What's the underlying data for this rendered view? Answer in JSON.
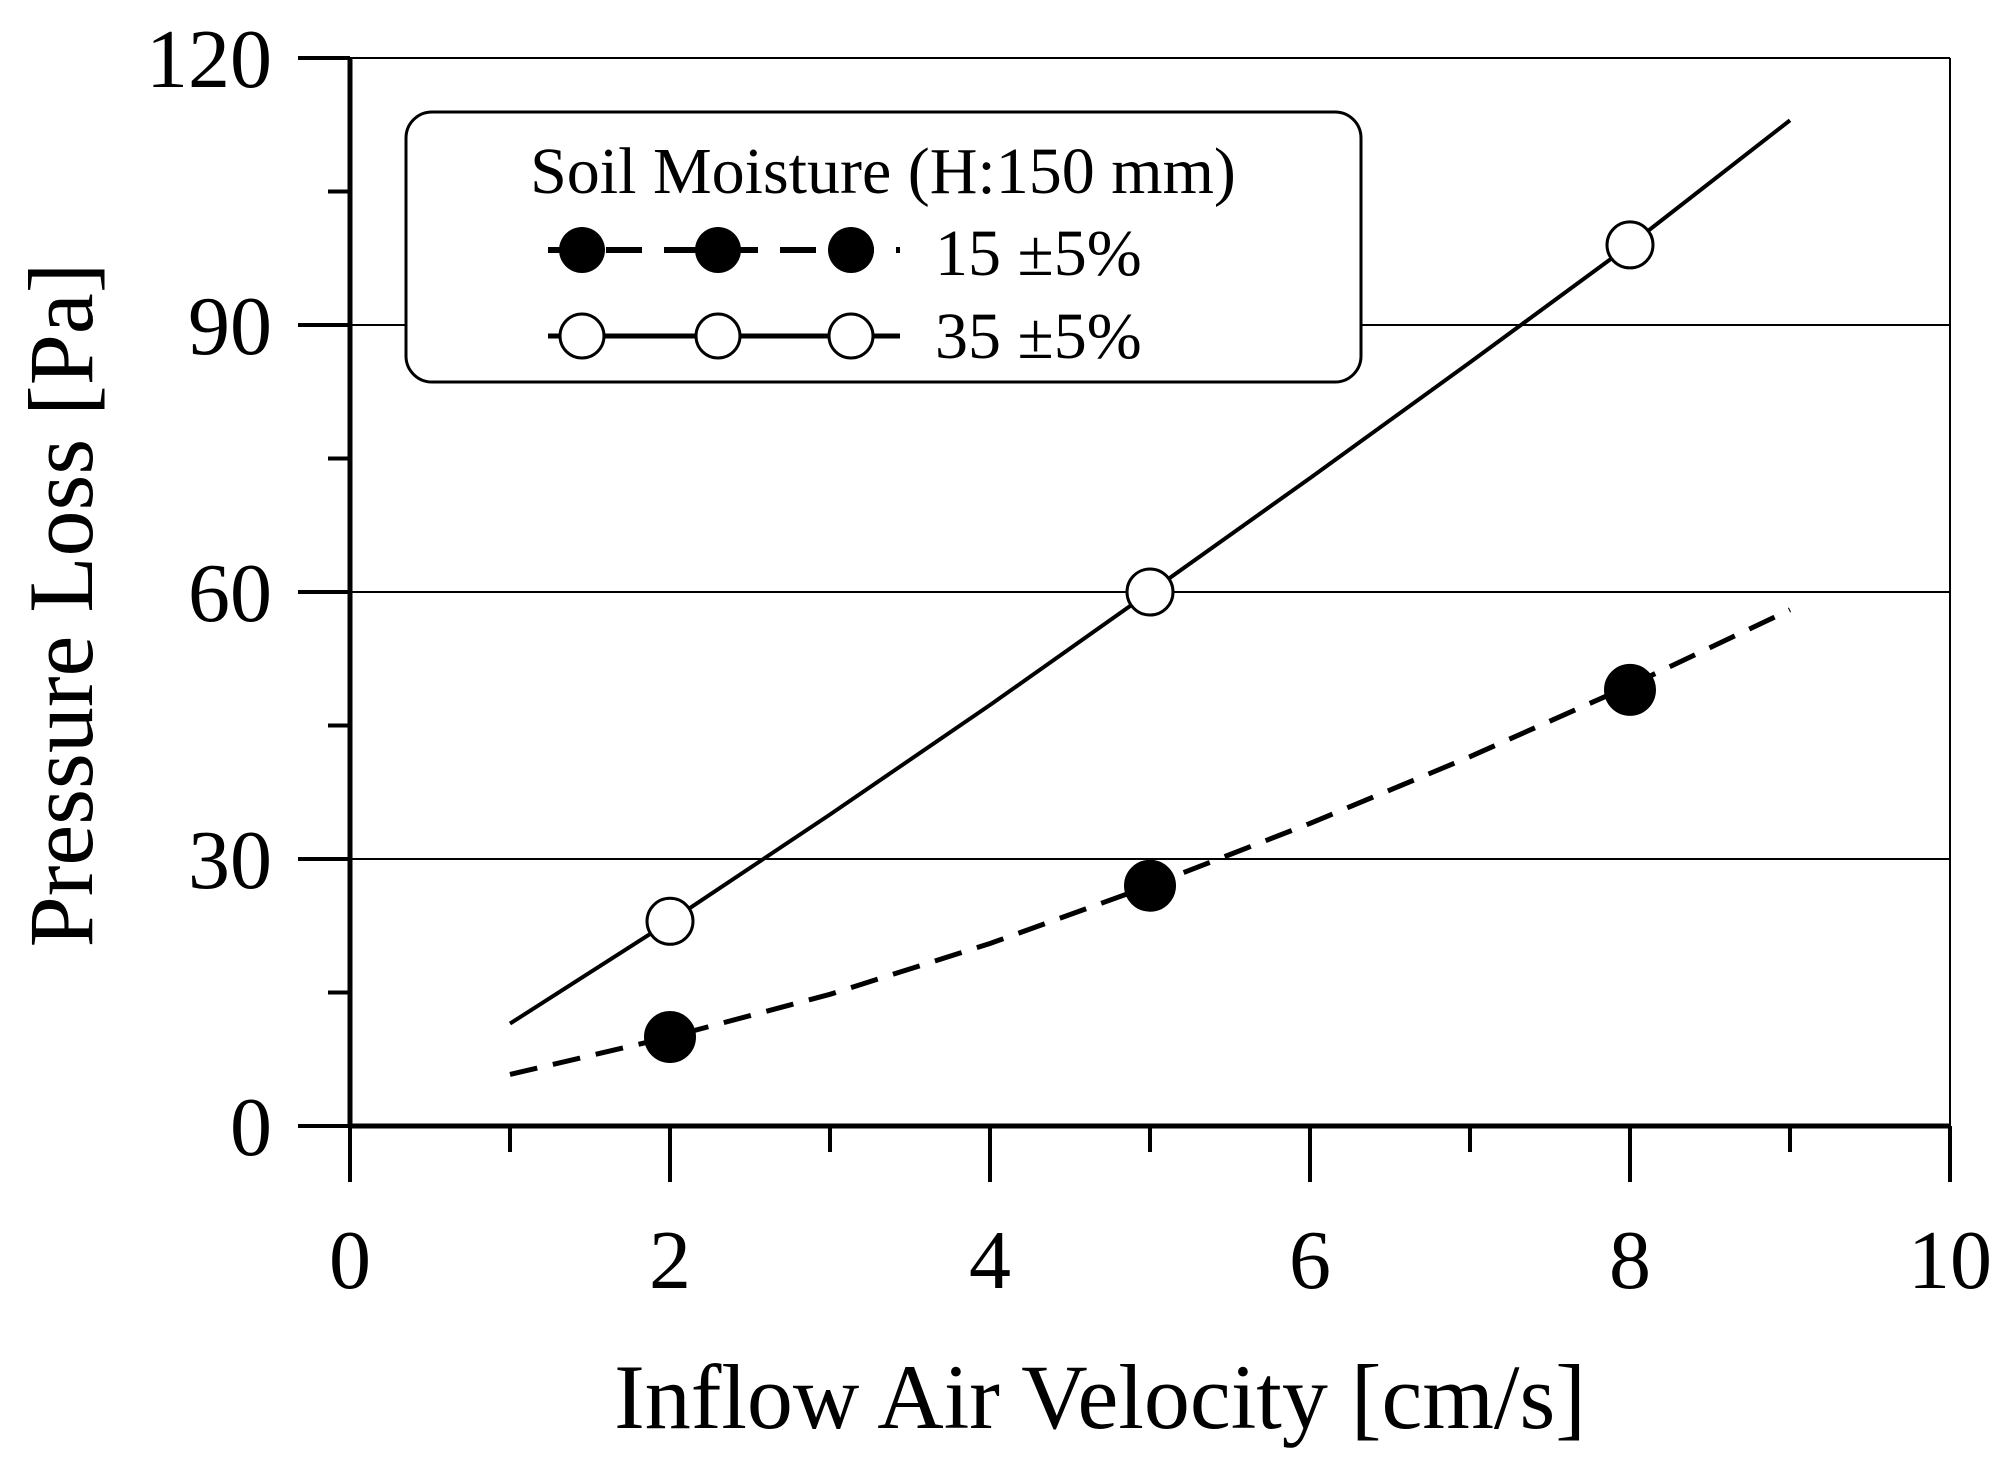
{
  "chart_data": {
    "type": "scatter",
    "xlabel": "Inflow Air Velocity [cm/s]",
    "ylabel": "Pressure Loss [Pa]",
    "xlim": [
      0,
      10
    ],
    "ylim": [
      0,
      120
    ],
    "xticks": [
      0,
      2,
      4,
      6,
      8,
      10
    ],
    "yticks": [
      0,
      30,
      60,
      90,
      120
    ],
    "x_minor_step": 1,
    "y_minor_step": 15,
    "grid": "horizontal major gridlines",
    "legend": {
      "title": "Soil Moisture (H:150 mm)",
      "placement": "top-left"
    },
    "series": [
      {
        "name": "15 ±5%",
        "marker": "filled-circle",
        "line": "dashed",
        "x": [
          2,
          5,
          8
        ],
        "y": [
          10,
          27,
          49
        ],
        "fit": {
          "x": [
            1,
            2,
            3,
            4,
            5,
            6,
            7,
            8,
            9
          ],
          "y": [
            5.8,
            10.0,
            14.8,
            20.5,
            27.0,
            34.0,
            41.5,
            49.5,
            58.0
          ]
        }
      },
      {
        "name": "35 ±5%",
        "marker": "open-circle",
        "line": "solid",
        "x": [
          2,
          5,
          8
        ],
        "y": [
          23,
          60,
          99
        ],
        "fit": {
          "x": [
            1,
            2,
            3,
            4,
            5,
            6,
            7,
            8,
            9
          ],
          "y": [
            11.5,
            23.0,
            35.0,
            47.3,
            60.0,
            72.8,
            85.8,
            99.0,
            113.0
          ]
        }
      }
    ]
  }
}
